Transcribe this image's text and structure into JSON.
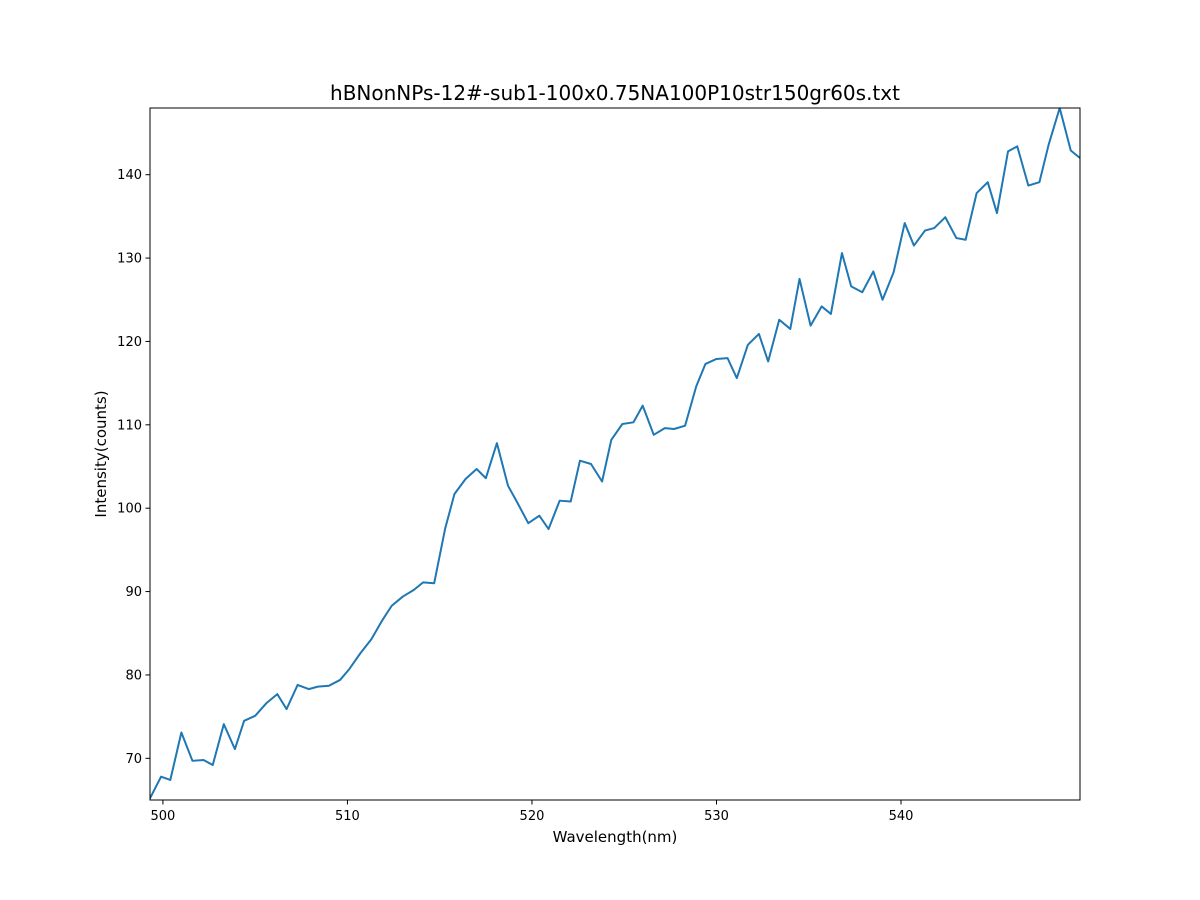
{
  "chart_data": {
    "type": "line",
    "title": "hBNonNPs-12#-sub1-100x0.75NA100P10str150gr60s.txt",
    "xlabel": "Wavelength(nm)",
    "ylabel": "Intensity(counts)",
    "xlim": [
      499.3,
      549.7
    ],
    "ylim": [
      65.0,
      148.0
    ],
    "xticks": [
      500,
      510,
      520,
      530,
      540
    ],
    "yticks": [
      70,
      80,
      90,
      100,
      110,
      120,
      130,
      140
    ],
    "grid": false,
    "line_color": "#1f77b4",
    "series": [
      {
        "x": [
          499.3,
          499.9,
          500.4,
          501.0,
          501.6,
          502.2,
          502.7,
          503.3,
          503.9,
          504.4,
          505.0,
          505.6,
          506.2,
          506.7,
          507.3,
          507.9,
          508.4,
          509.0,
          509.6,
          510.1,
          510.7,
          511.3,
          511.9,
          512.4,
          513.0,
          513.6,
          514.1,
          514.7,
          515.3,
          515.8,
          516.4,
          517.0,
          517.5,
          518.1,
          518.7,
          519.2,
          519.8,
          520.4,
          520.9,
          521.5,
          522.1,
          522.6,
          523.2,
          523.8,
          524.3,
          524.9,
          525.5,
          526.0,
          526.6,
          527.2,
          527.7,
          528.3,
          528.9,
          529.4,
          530.0,
          530.6,
          531.1,
          531.7,
          532.3,
          532.8,
          533.4,
          534.0,
          534.5,
          535.1,
          535.7,
          536.2,
          536.8,
          537.3,
          537.9,
          538.5,
          539.0,
          539.6,
          540.2,
          540.7,
          541.3,
          541.8,
          542.4,
          543.0,
          543.5,
          544.1,
          544.7,
          545.2,
          545.8,
          546.3,
          546.9,
          547.5,
          548.0,
          548.6,
          549.2,
          549.7
        ],
        "y": [
          65.2,
          67.8,
          67.4,
          73.1,
          69.7,
          69.8,
          69.2,
          74.1,
          71.1,
          74.5,
          75.1,
          76.6,
          77.7,
          75.9,
          78.8,
          78.3,
          78.6,
          78.7,
          79.4,
          80.7,
          82.6,
          84.3,
          86.6,
          88.3,
          89.4,
          90.2,
          91.1,
          91.0,
          97.6,
          101.7,
          103.5,
          104.7,
          103.6,
          107.8,
          102.7,
          100.7,
          98.2,
          99.1,
          97.5,
          100.9,
          100.8,
          105.7,
          105.3,
          103.2,
          108.2,
          110.1,
          110.3,
          112.3,
          108.8,
          109.6,
          109.5,
          109.9,
          114.6,
          117.3,
          117.9,
          118.0,
          115.6,
          119.6,
          120.9,
          117.6,
          122.6,
          121.5,
          127.5,
          121.9,
          124.2,
          123.3,
          130.6,
          126.6,
          125.9,
          128.4,
          125.0,
          128.3,
          134.2,
          131.5,
          133.3,
          133.6,
          134.9,
          132.4,
          132.2,
          137.8,
          139.1,
          135.4,
          142.8,
          143.4,
          138.7,
          139.1,
          143.6,
          148.0,
          142.9,
          142.0
        ]
      }
    ]
  }
}
